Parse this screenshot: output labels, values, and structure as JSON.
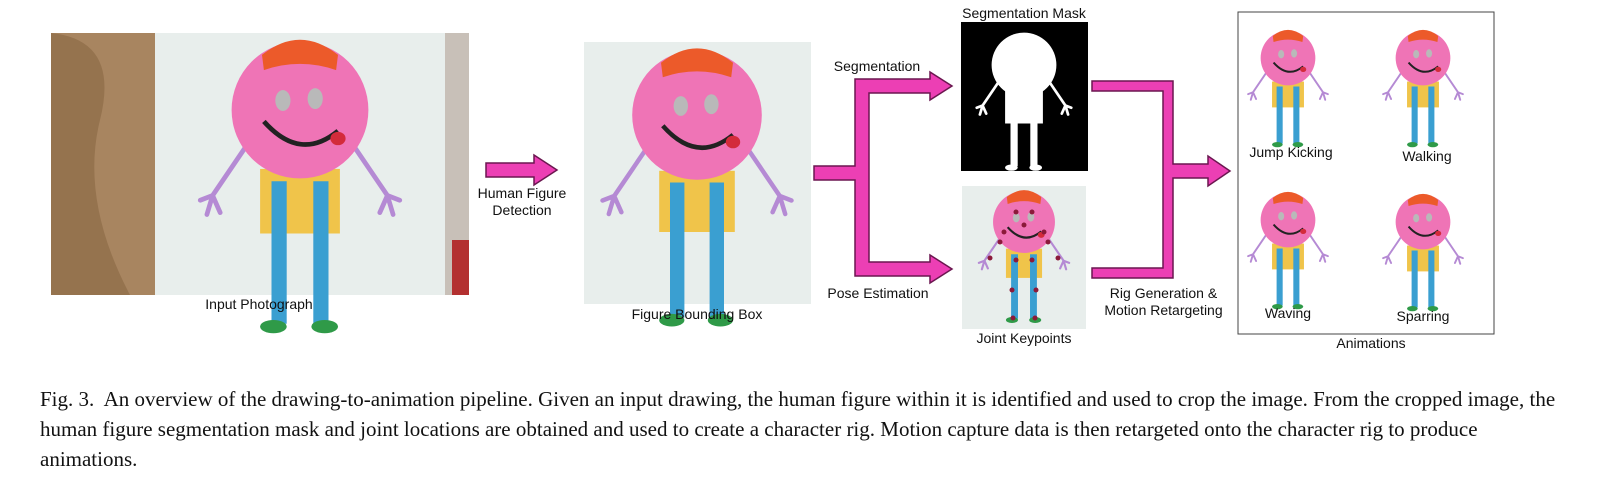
{
  "figure": {
    "labels": {
      "input_photograph": "Input Photograph",
      "detection_line1": "Human Figure",
      "detection_line2": "Detection",
      "figure_bounding_box": "Figure Bounding Box",
      "segmentation": "Segmentation",
      "pose_estimation": "Pose Estimation",
      "segmentation_mask": "Segmentation Mask",
      "joint_keypoints": "Joint Keypoints",
      "rig_line1": "Rig Generation &",
      "rig_line2": "Motion Retargeting",
      "animations": "Animations",
      "jump_kicking": "Jump Kicking",
      "walking": "Walking",
      "waving": "Waving",
      "sparring": "Sparring"
    },
    "colors": {
      "arrow": "#ec3fb4",
      "arrow_stroke": "#6b1750",
      "body": "#ef74b6",
      "hair": "#ec5a2a",
      "shirt": "#f0c44a",
      "legs": "#3a9fd1",
      "shoes": "#2f9a48",
      "arms": "#b58ad4",
      "paper": "#e8eeec",
      "hair_photo": "#a88560",
      "keypoint": "#8b1a3a"
    }
  },
  "caption": {
    "label": "Fig. 3.",
    "text": "An overview of the drawing-to-animation pipeline. Given an input drawing, the human figure within it is identified and used to crop the image. From the cropped image, the human figure segmentation mask and joint locations are obtained and used to create a character rig. Motion capture data is then retargeted onto the character rig to produce animations."
  }
}
